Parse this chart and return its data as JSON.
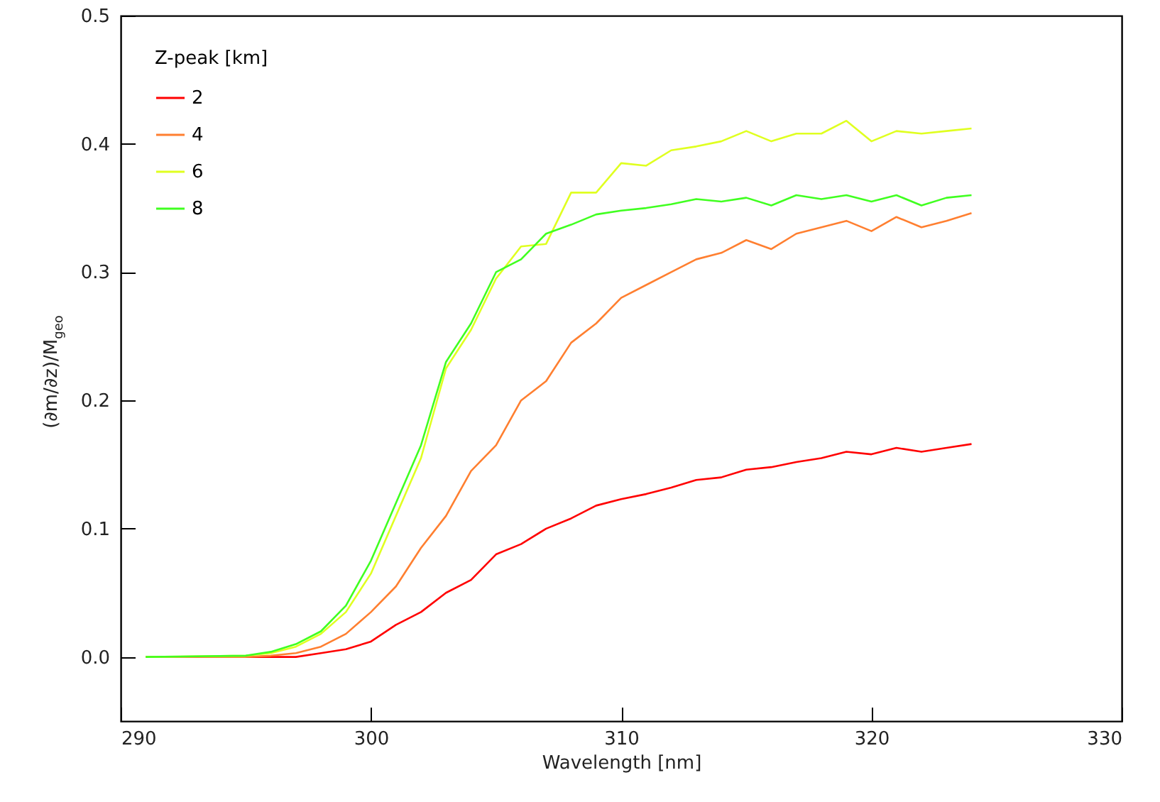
{
  "chart_data": {
    "type": "line",
    "xlabel": "Wavelength [nm]",
    "ylabel": "(∂m/∂z)/M$_{geo}$",
    "legend_title": "Z-peak [km]",
    "legend": "top left",
    "grid": false,
    "line_style": "solid",
    "marker": "none",
    "xlim": [
      290,
      330
    ],
    "xticks": [
      290,
      300,
      310,
      320,
      330
    ],
    "ylim": [
      -0.05,
      0.5
    ],
    "yticks": [
      {
        "value": 0,
        "label": "0.0"
      },
      0.1,
      0.2,
      0.3,
      0.4,
      0.5
    ],
    "x": [
      291,
      295,
      296,
      297,
      298,
      299,
      300,
      301,
      302,
      303,
      304,
      305,
      306,
      307,
      308,
      309,
      310,
      311,
      312,
      313,
      314,
      315,
      316,
      317,
      318,
      319,
      320,
      321,
      322,
      323,
      324
    ],
    "series": [
      {
        "name": "2",
        "color": "#ff0000",
        "values": [
          0,
          0,
          0,
          0,
          0.003,
          0.006,
          0.012,
          0.025,
          0.035,
          0.05,
          0.06,
          0.08,
          0.088,
          0.1,
          0.108,
          0.118,
          0.123,
          0.127,
          0.132,
          0.138,
          0.14,
          0.146,
          0.148,
          0.152,
          0.155,
          0.16,
          0.158,
          0.163,
          0.16,
          0.163,
          0.166
        ]
      },
      {
        "name": "4",
        "color": "#ff7f30",
        "values": [
          0,
          0,
          0.001,
          0.003,
          0.008,
          0.018,
          0.035,
          0.055,
          0.085,
          0.11,
          0.145,
          0.165,
          0.2,
          0.215,
          0.245,
          0.26,
          0.28,
          0.29,
          0.3,
          0.31,
          0.315,
          0.325,
          0.318,
          0.33,
          0.335,
          0.34,
          0.332,
          0.343,
          0.335,
          0.34,
          0.346
        ]
      },
      {
        "name": "6",
        "color": "#e0ff20",
        "values": [
          0,
          0.001,
          0.003,
          0.008,
          0.018,
          0.035,
          0.065,
          0.11,
          0.155,
          0.225,
          0.255,
          0.295,
          0.32,
          0.322,
          0.362,
          0.362,
          0.385,
          0.383,
          0.395,
          0.398,
          0.402,
          0.41,
          0.402,
          0.408,
          0.408,
          0.418,
          0.402,
          0.41,
          0.408,
          0.41,
          0.412
        ]
      },
      {
        "name": "8",
        "color": "#40ff20",
        "values": [
          0,
          0.001,
          0.004,
          0.01,
          0.02,
          0.04,
          0.075,
          0.12,
          0.165,
          0.23,
          0.26,
          0.3,
          0.31,
          0.33,
          0.337,
          0.345,
          0.348,
          0.35,
          0.353,
          0.357,
          0.355,
          0.358,
          0.352,
          0.36,
          0.357,
          0.36,
          0.355,
          0.36,
          0.352,
          0.358,
          0.36
        ]
      }
    ]
  }
}
